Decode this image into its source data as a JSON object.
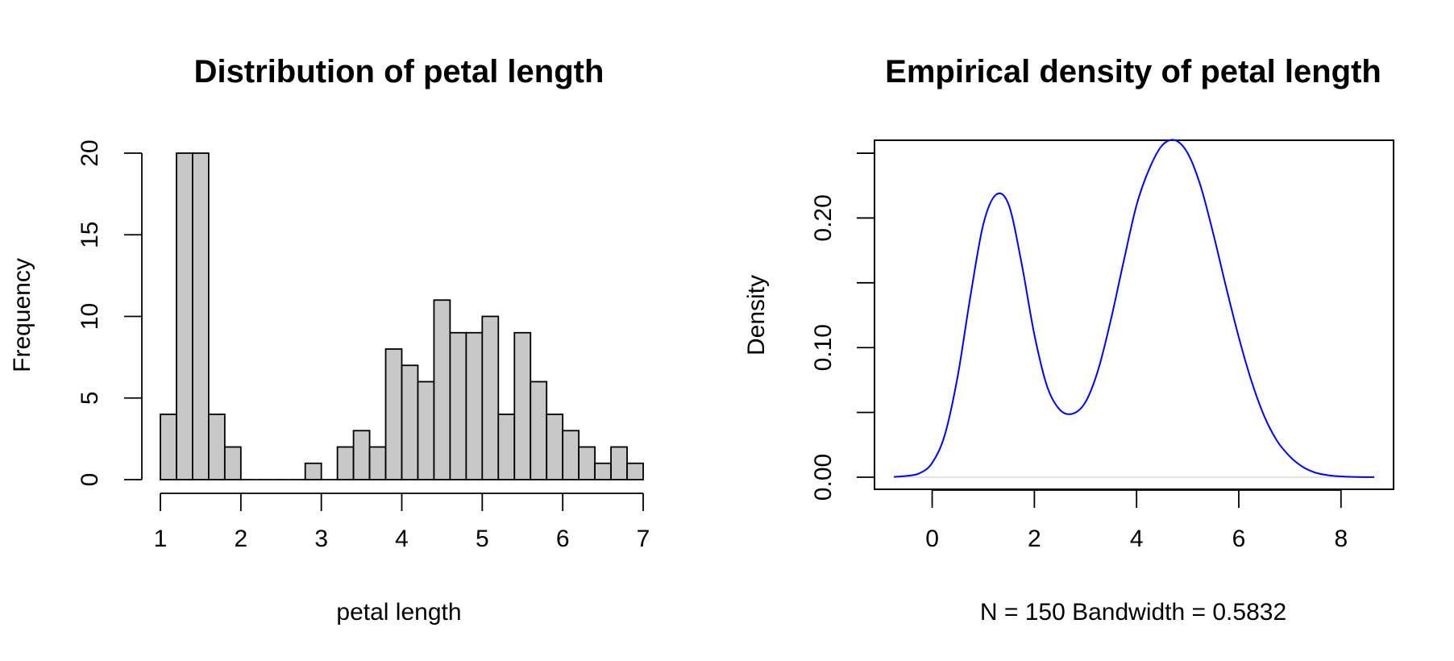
{
  "chart_data": [
    {
      "type": "bar",
      "title": "Distribution of petal length",
      "xlabel": "petal length",
      "ylabel": "Frequency",
      "bin_width": 0.2,
      "bins": [
        {
          "x0": 1.0,
          "x1": 1.2,
          "count": 4
        },
        {
          "x0": 1.2,
          "x1": 1.4,
          "count": 20
        },
        {
          "x0": 1.4,
          "x1": 1.6,
          "count": 20
        },
        {
          "x0": 1.6,
          "x1": 1.8,
          "count": 4
        },
        {
          "x0": 1.8,
          "x1": 2.0,
          "count": 2
        },
        {
          "x0": 2.0,
          "x1": 2.2,
          "count": 0
        },
        {
          "x0": 2.2,
          "x1": 2.4,
          "count": 0
        },
        {
          "x0": 2.4,
          "x1": 2.6,
          "count": 0
        },
        {
          "x0": 2.6,
          "x1": 2.8,
          "count": 0
        },
        {
          "x0": 2.8,
          "x1": 3.0,
          "count": 1
        },
        {
          "x0": 3.0,
          "x1": 3.2,
          "count": 0
        },
        {
          "x0": 3.2,
          "x1": 3.4,
          "count": 2
        },
        {
          "x0": 3.4,
          "x1": 3.6,
          "count": 3
        },
        {
          "x0": 3.6,
          "x1": 3.8,
          "count": 2
        },
        {
          "x0": 3.8,
          "x1": 4.0,
          "count": 8
        },
        {
          "x0": 4.0,
          "x1": 4.2,
          "count": 7
        },
        {
          "x0": 4.2,
          "x1": 4.4,
          "count": 6
        },
        {
          "x0": 4.4,
          "x1": 4.6,
          "count": 11
        },
        {
          "x0": 4.6,
          "x1": 4.8,
          "count": 9
        },
        {
          "x0": 4.8,
          "x1": 5.0,
          "count": 9
        },
        {
          "x0": 5.0,
          "x1": 5.2,
          "count": 10
        },
        {
          "x0": 5.2,
          "x1": 5.4,
          "count": 4
        },
        {
          "x0": 5.4,
          "x1": 5.6,
          "count": 9
        },
        {
          "x0": 5.6,
          "x1": 5.8,
          "count": 6
        },
        {
          "x0": 5.8,
          "x1": 6.0,
          "count": 4
        },
        {
          "x0": 6.0,
          "x1": 6.2,
          "count": 3
        },
        {
          "x0": 6.2,
          "x1": 6.4,
          "count": 2
        },
        {
          "x0": 6.4,
          "x1": 6.6,
          "count": 1
        },
        {
          "x0": 6.6,
          "x1": 6.8,
          "count": 2
        },
        {
          "x0": 6.8,
          "x1": 7.0,
          "count": 1
        }
      ],
      "xlim": [
        1,
        7
      ],
      "ylim": [
        0,
        20
      ],
      "xticks": [
        1,
        2,
        3,
        4,
        5,
        6,
        7
      ],
      "yticks": [
        0,
        5,
        10,
        15,
        20
      ],
      "bar_color": "#c8c8c8",
      "grid": false
    },
    {
      "type": "line",
      "title": "Empirical density of petal length",
      "xlabel": "N = 150   Bandwidth = 0.5832",
      "ylabel": "Density",
      "xlim": [
        -0.75,
        8.65
      ],
      "ylim": [
        0,
        0.255
      ],
      "xticks": [
        0,
        2,
        4,
        6,
        8
      ],
      "yticks": [
        0.0,
        0.05,
        0.1,
        0.15,
        0.2,
        0.25
      ],
      "ytick_labels": [
        "0.00",
        "",
        "0.10",
        "",
        "0.20",
        ""
      ],
      "series": [
        {
          "color": "#0000ff",
          "x": [
            -0.75,
            -0.5,
            -0.25,
            0.0,
            0.25,
            0.5,
            0.75,
            1.0,
            1.25,
            1.5,
            1.75,
            2.0,
            2.25,
            2.5,
            2.75,
            3.0,
            3.25,
            3.5,
            3.75,
            4.0,
            4.25,
            4.5,
            4.75,
            5.0,
            5.25,
            5.5,
            5.75,
            6.0,
            6.25,
            6.5,
            6.75,
            7.0,
            7.25,
            7.5,
            7.75,
            8.0,
            8.25,
            8.5,
            8.65
          ],
          "y": [
            0.0003,
            0.001,
            0.003,
            0.011,
            0.033,
            0.078,
            0.14,
            0.195,
            0.218,
            0.21,
            0.165,
            0.11,
            0.07,
            0.052,
            0.049,
            0.058,
            0.083,
            0.122,
            0.167,
            0.21,
            0.238,
            0.256,
            0.26,
            0.25,
            0.225,
            0.188,
            0.147,
            0.108,
            0.074,
            0.047,
            0.028,
            0.016,
            0.008,
            0.0035,
            0.0015,
            0.0006,
            0.0002,
            0.0001,
            0.0001
          ]
        }
      ],
      "grid": false
    }
  ]
}
